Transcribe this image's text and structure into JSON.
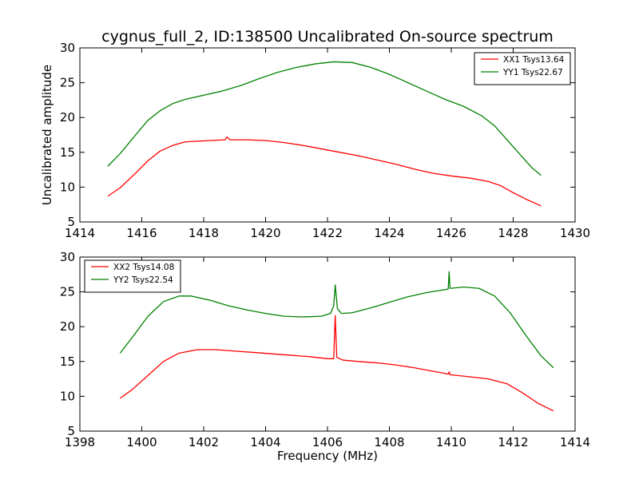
{
  "figure": {
    "title": "cygnus_full_2, ID:138500 Uncalibrated On-source spectrum",
    "ylabel": "Uncalibrated amplitude",
    "xlabel": "Frequency (MHz)"
  },
  "chart_data": [
    {
      "type": "line",
      "title": "cygnus_full_2, ID:138500 Uncalibrated On-source spectrum",
      "xlabel": "",
      "ylabel": "Uncalibrated amplitude",
      "xlim": [
        1414,
        1430
      ],
      "ylim": [
        5,
        30
      ],
      "xticks": [
        1414,
        1416,
        1418,
        1420,
        1422,
        1424,
        1426,
        1428,
        1430
      ],
      "yticks": [
        5,
        10,
        15,
        20,
        25,
        30
      ],
      "grid": false,
      "legend": "top-right",
      "series": [
        {
          "name": "XX1 Tsys13.64",
          "color": "#ff0000",
          "points": [
            [
              1414.9,
              8.7
            ],
            [
              1415.3,
              9.9
            ],
            [
              1415.8,
              12.0
            ],
            [
              1416.2,
              13.8
            ],
            [
              1416.6,
              15.2
            ],
            [
              1417.0,
              16.0
            ],
            [
              1417.4,
              16.5
            ],
            [
              1417.8,
              16.6
            ],
            [
              1418.2,
              16.7
            ],
            [
              1418.7,
              16.8
            ],
            [
              1418.75,
              17.2
            ],
            [
              1418.85,
              16.8
            ],
            [
              1419.4,
              16.8
            ],
            [
              1420.0,
              16.7
            ],
            [
              1420.6,
              16.4
            ],
            [
              1421.2,
              16.0
            ],
            [
              1421.8,
              15.5
            ],
            [
              1422.4,
              15.0
            ],
            [
              1423.0,
              14.5
            ],
            [
              1423.6,
              13.9
            ],
            [
              1424.2,
              13.3
            ],
            [
              1424.8,
              12.6
            ],
            [
              1425.4,
              12.0
            ],
            [
              1426.0,
              11.6
            ],
            [
              1426.6,
              11.3
            ],
            [
              1427.2,
              10.8
            ],
            [
              1427.6,
              10.2
            ],
            [
              1428.0,
              9.2
            ],
            [
              1428.4,
              8.3
            ],
            [
              1428.9,
              7.3
            ]
          ]
        },
        {
          "name": "YY1 Tsys22.67",
          "color": "#008000",
          "points": [
            [
              1414.9,
              13.0
            ],
            [
              1415.3,
              14.8
            ],
            [
              1415.8,
              17.5
            ],
            [
              1416.2,
              19.6
            ],
            [
              1416.6,
              21.0
            ],
            [
              1417.0,
              22.0
            ],
            [
              1417.4,
              22.6
            ],
            [
              1418.0,
              23.2
            ],
            [
              1418.6,
              23.8
            ],
            [
              1419.2,
              24.6
            ],
            [
              1419.8,
              25.6
            ],
            [
              1420.4,
              26.5
            ],
            [
              1421.0,
              27.2
            ],
            [
              1421.6,
              27.7
            ],
            [
              1422.2,
              28.0
            ],
            [
              1422.8,
              27.9
            ],
            [
              1423.4,
              27.2
            ],
            [
              1424.0,
              26.2
            ],
            [
              1424.6,
              25.0
            ],
            [
              1425.2,
              23.8
            ],
            [
              1425.8,
              22.6
            ],
            [
              1426.4,
              21.6
            ],
            [
              1427.0,
              20.2
            ],
            [
              1427.4,
              18.8
            ],
            [
              1427.8,
              16.8
            ],
            [
              1428.2,
              14.8
            ],
            [
              1428.6,
              12.8
            ],
            [
              1428.9,
              11.7
            ]
          ]
        }
      ]
    },
    {
      "type": "line",
      "title": "",
      "xlabel": "Frequency (MHz)",
      "ylabel": "",
      "xlim": [
        1398,
        1414
      ],
      "ylim": [
        5,
        30
      ],
      "xticks": [
        1398,
        1400,
        1402,
        1404,
        1406,
        1408,
        1410,
        1412,
        1414
      ],
      "yticks": [
        5,
        10,
        15,
        20,
        25,
        30
      ],
      "grid": false,
      "legend": "top-left",
      "series": [
        {
          "name": "XX2 Tsys14.08",
          "color": "#ff0000",
          "points": [
            [
              1399.3,
              9.7
            ],
            [
              1399.7,
              11.0
            ],
            [
              1400.2,
              13.0
            ],
            [
              1400.7,
              15.0
            ],
            [
              1401.2,
              16.2
            ],
            [
              1401.8,
              16.7
            ],
            [
              1402.4,
              16.7
            ],
            [
              1403.0,
              16.5
            ],
            [
              1403.6,
              16.3
            ],
            [
              1404.2,
              16.1
            ],
            [
              1404.8,
              15.9
            ],
            [
              1405.4,
              15.7
            ],
            [
              1406.0,
              15.4
            ],
            [
              1406.2,
              15.4
            ],
            [
              1406.25,
              21.6
            ],
            [
              1406.3,
              15.6
            ],
            [
              1406.5,
              15.2
            ],
            [
              1407.0,
              15.0
            ],
            [
              1407.6,
              14.8
            ],
            [
              1408.2,
              14.5
            ],
            [
              1408.8,
              14.1
            ],
            [
              1409.4,
              13.6
            ],
            [
              1409.9,
              13.2
            ],
            [
              1409.93,
              13.5
            ],
            [
              1409.96,
              13.1
            ],
            [
              1410.6,
              12.8
            ],
            [
              1411.2,
              12.5
            ],
            [
              1411.8,
              11.8
            ],
            [
              1412.3,
              10.5
            ],
            [
              1412.8,
              9.0
            ],
            [
              1413.3,
              7.9
            ]
          ]
        },
        {
          "name": "YY2 Tsys22.54",
          "color": "#008000",
          "points": [
            [
              1399.3,
              16.2
            ],
            [
              1399.7,
              18.5
            ],
            [
              1400.2,
              21.5
            ],
            [
              1400.7,
              23.6
            ],
            [
              1401.2,
              24.4
            ],
            [
              1401.6,
              24.4
            ],
            [
              1402.2,
              23.8
            ],
            [
              1402.8,
              23.0
            ],
            [
              1403.4,
              22.4
            ],
            [
              1404.0,
              21.9
            ],
            [
              1404.6,
              21.5
            ],
            [
              1405.2,
              21.4
            ],
            [
              1405.8,
              21.5
            ],
            [
              1406.1,
              21.9
            ],
            [
              1406.2,
              23.0
            ],
            [
              1406.25,
              26.0
            ],
            [
              1406.32,
              22.6
            ],
            [
              1406.45,
              21.9
            ],
            [
              1406.8,
              22.0
            ],
            [
              1407.4,
              22.7
            ],
            [
              1408.0,
              23.5
            ],
            [
              1408.6,
              24.3
            ],
            [
              1409.2,
              24.9
            ],
            [
              1409.9,
              25.4
            ],
            [
              1409.93,
              27.9
            ],
            [
              1409.96,
              25.5
            ],
            [
              1410.4,
              25.7
            ],
            [
              1410.9,
              25.5
            ],
            [
              1411.4,
              24.4
            ],
            [
              1411.9,
              22.0
            ],
            [
              1412.4,
              18.8
            ],
            [
              1412.9,
              15.8
            ],
            [
              1413.3,
              14.1
            ]
          ]
        }
      ]
    }
  ]
}
